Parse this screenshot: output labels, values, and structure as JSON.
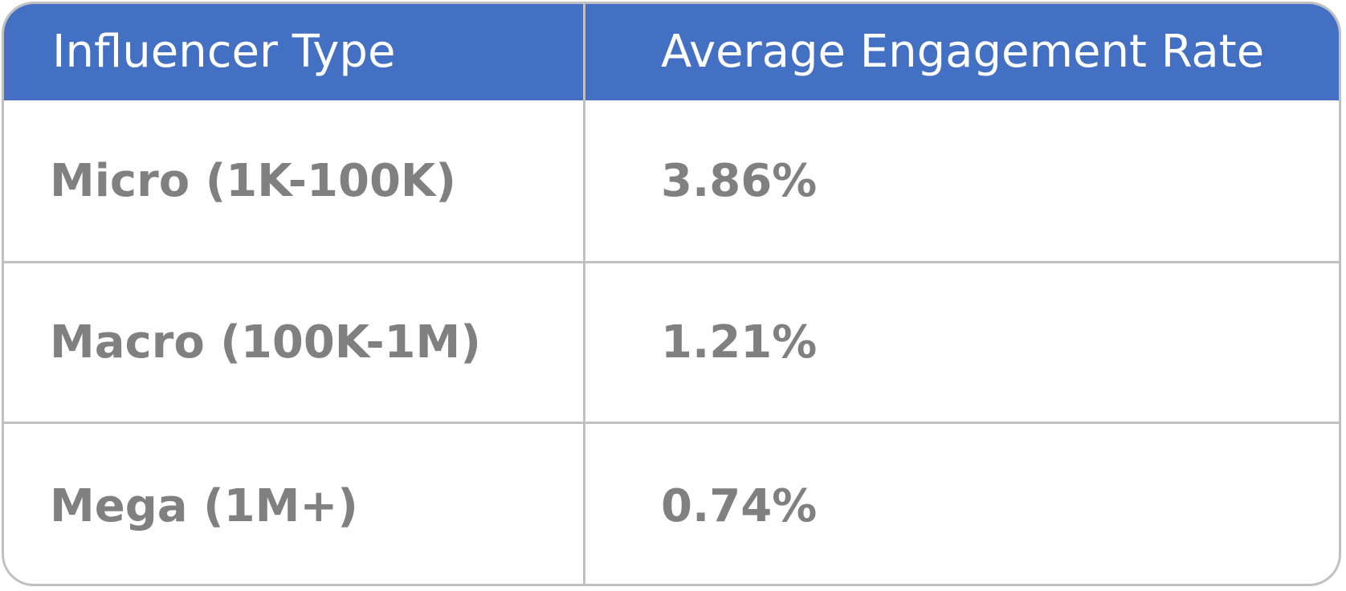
{
  "chart_data": {
    "type": "table",
    "columns": [
      "Influencer Type",
      "Average Engagement Rate"
    ],
    "rows": [
      {
        "type": "Micro (1K-100K)",
        "rate": "3.86%",
        "value": 3.86
      },
      {
        "type": "Macro (100K-1M)",
        "rate": "1.21%",
        "value": 1.21
      },
      {
        "type": "Mega (1M+)",
        "rate": "0.74%",
        "value": 0.74
      }
    ]
  },
  "colors": {
    "header_background": "#4470c4",
    "header_text": "#ffffff",
    "body_text": "#808080",
    "grid_lines": "#c0c0c0"
  }
}
